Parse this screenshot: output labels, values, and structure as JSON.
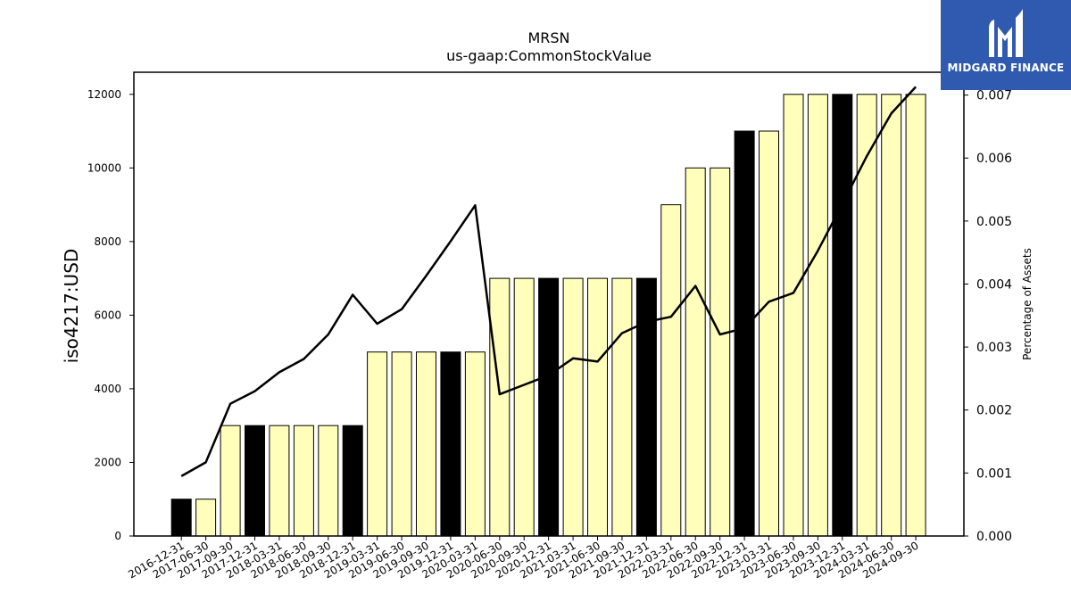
{
  "chart_data": {
    "type": "bar",
    "title": "MRSN",
    "subtitle": "us-gaap:CommonStockValue",
    "ylabel": "iso4217:USD",
    "y2label": "Percentage of Assets",
    "ylim": [
      0,
      12600
    ],
    "y2lim": [
      0,
      0.0073625
    ],
    "yticks": [
      0,
      2000,
      4000,
      6000,
      8000,
      10000,
      12000
    ],
    "y2ticks": [
      "0.000",
      "0.001",
      "0.002",
      "0.003",
      "0.004",
      "0.005",
      "0.006",
      "0.007"
    ],
    "categories": [
      "2016-12-31",
      "2017-06-30",
      "2017-09-30",
      "2017-12-31",
      "2018-03-31",
      "2018-06-30",
      "2018-09-30",
      "2018-12-31",
      "2019-03-31",
      "2019-06-30",
      "2019-09-30",
      "2019-12-31",
      "2020-03-31",
      "2020-06-30",
      "2020-09-30",
      "2020-12-31",
      "2021-03-31",
      "2021-06-30",
      "2021-09-30",
      "2021-12-31",
      "2022-03-31",
      "2022-06-30",
      "2022-09-30",
      "2022-12-31",
      "2023-03-31",
      "2023-06-30",
      "2023-09-30",
      "2023-12-31",
      "2024-03-31",
      "2024-06-30",
      "2024-09-30"
    ],
    "values": [
      1000,
      1000,
      3000,
      3000,
      3000,
      3000,
      3000,
      3000,
      5000,
      5000,
      5000,
      5000,
      5000,
      7000,
      7000,
      7000,
      7000,
      7000,
      7000,
      7000,
      9000,
      10000,
      10000,
      11000,
      11000,
      12000,
      12000,
      12000,
      12000,
      12000,
      12000
    ],
    "annual_flags": [
      true,
      false,
      false,
      true,
      false,
      false,
      false,
      true,
      false,
      false,
      false,
      true,
      false,
      false,
      false,
      true,
      false,
      false,
      false,
      true,
      false,
      false,
      false,
      true,
      false,
      false,
      false,
      true,
      false,
      false,
      false
    ],
    "line_series": {
      "values": [
        0.00095,
        0.00117,
        0.0021,
        0.0023,
        0.0026,
        0.00281,
        0.0032,
        0.00383,
        0.00337,
        0.0036,
        0.00413,
        0.00468,
        0.00525,
        0.00225,
        0.0024,
        0.00255,
        0.00282,
        0.00277,
        0.00322,
        0.0034,
        0.00348,
        0.00397,
        0.0032,
        0.0033,
        0.00372,
        0.00386,
        0.00453,
        0.00527,
        0.00603,
        0.00671,
        0.00713
      ]
    },
    "colors": {
      "annual_bar": "#000000",
      "quarter_bar": "#ffffbb",
      "line": "#000000"
    }
  },
  "logo": {
    "text": "MIDGARD FINANCE",
    "background": "#2f5ab0"
  }
}
